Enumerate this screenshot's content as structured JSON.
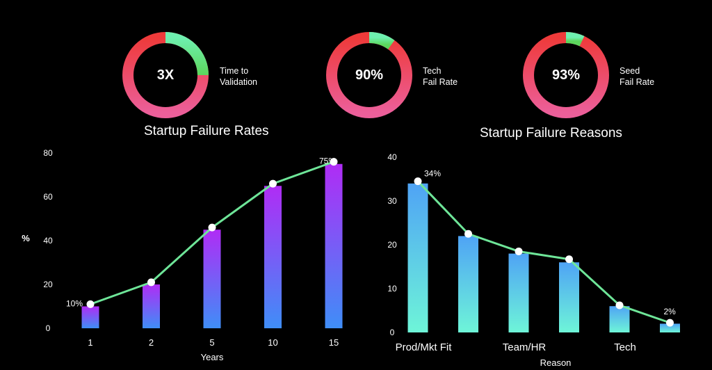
{
  "gauges": [
    {
      "value": "3X",
      "label_line1": "Time to",
      "label_line2": "Validation",
      "fill_fraction": 0.25
    },
    {
      "value": "90%",
      "label_line1": "Tech",
      "label_line2": "Fail Rate",
      "fill_fraction": 0.1
    },
    {
      "value": "93%",
      "label_line1": "Seed",
      "label_line2": "Fail Rate",
      "fill_fraction": 0.07
    }
  ],
  "titles": {
    "left": "Startup Failure Rates",
    "right": "Startup Failure Reasons"
  },
  "colors": {
    "ring_green_start": "#6ef0b0",
    "ring_green_end": "#5cd65c",
    "ring_red": "#ee3a3a",
    "ring_pink": "#ec5f9a",
    "bar_left_top": "#b02cf5",
    "bar_left_bottom": "#3f8ef7",
    "bar_right_top": "#4fa3f5",
    "bar_right_bottom": "#6ef5d8",
    "line": "#6ee598",
    "point": "#ffffff"
  },
  "chart_data": [
    {
      "type": "bar",
      "title": "Startup Failure Rates",
      "xlabel": "Years",
      "ylabel": "%",
      "categories": [
        "1",
        "2",
        "5",
        "10",
        "15"
      ],
      "values": [
        10,
        20,
        45,
        65,
        75
      ],
      "line_values": [
        11,
        21,
        46,
        66,
        76
      ],
      "data_labels": [
        {
          "index": 0,
          "text": "10%"
        },
        {
          "index": 4,
          "text": "75%"
        }
      ],
      "ylim": [
        0,
        80
      ],
      "yticks": [
        0,
        20,
        40,
        60,
        80
      ],
      "grid": false
    },
    {
      "type": "bar",
      "title": "Startup Failure Reasons",
      "xlabel": "Reason",
      "ylabel": "",
      "categories": [
        "Prod/Mkt Fit",
        "",
        "Team/HR",
        "",
        "Tech",
        ""
      ],
      "values": [
        34,
        22,
        18,
        16,
        6,
        2
      ],
      "line_values": [
        34.5,
        22.5,
        18.5,
        16.7,
        6.2,
        2.2
      ],
      "data_labels": [
        {
          "index": 0,
          "text": "34%"
        },
        {
          "index": 5,
          "text": "2%"
        }
      ],
      "ylim": [
        0,
        40
      ],
      "yticks": [
        0,
        10,
        20,
        30,
        40
      ],
      "grid": false
    }
  ]
}
